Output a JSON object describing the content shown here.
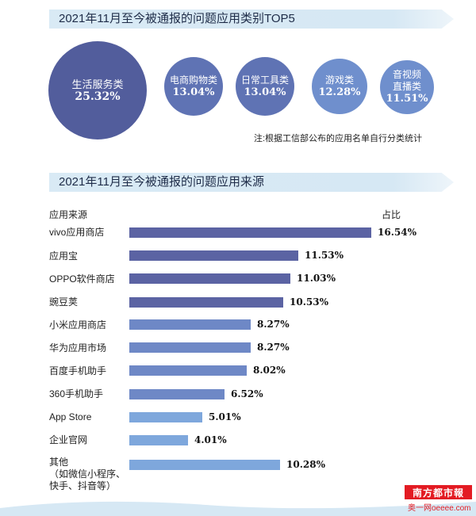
{
  "colors": {
    "bubble_dark": "#525d9c",
    "bubble_mid": "#5f73b4",
    "bubble_light": "#6f8fcd",
    "bar_dark": "#5b63a3",
    "bar_mid": "#6e88c6",
    "bar_light": "#7ea7dc",
    "title_bg": "#d6e8f4"
  },
  "chart_data": [
    {
      "type": "bubble",
      "title": "2021年11月至今被通报的问题应用类别TOP5",
      "note": "注:根据工信部公布的应用名单自行分类统计",
      "categories": [
        "生活服务类",
        "电商购物类",
        "日常工具类",
        "游戏类",
        "音视频\n直播类"
      ],
      "values": [
        25.32,
        13.04,
        13.04,
        12.28,
        11.51
      ],
      "value_labels": [
        "25.32%",
        "13.04%",
        "13.04%",
        "12.28%",
        "11.51%"
      ]
    },
    {
      "type": "bar",
      "orientation": "horizontal",
      "title": "2021年11月至今被通报的问题应用来源",
      "ylabel": "应用来源",
      "xlabel": "占比",
      "categories": [
        "vivo应用商店",
        "应用宝",
        "OPPO软件商店",
        "豌豆荚",
        "小米应用商店",
        "华为应用市场",
        "百度手机助手",
        "360手机助手",
        "App Store",
        "企业官网",
        "其他\n（如微信小程序、\n快手、抖音等）"
      ],
      "values": [
        16.54,
        11.53,
        11.03,
        10.53,
        8.27,
        8.27,
        8.02,
        6.52,
        5.01,
        4.01,
        10.28
      ],
      "value_labels": [
        "16.54%",
        "11.53%",
        "11.03%",
        "10.53%",
        "8.27%",
        "8.27%",
        "8.02%",
        "6.52%",
        "5.01%",
        "4.01%",
        "10.28%"
      ]
    }
  ],
  "logo": {
    "name": "南方都市報",
    "sub": "奥一网oeeee.com"
  }
}
